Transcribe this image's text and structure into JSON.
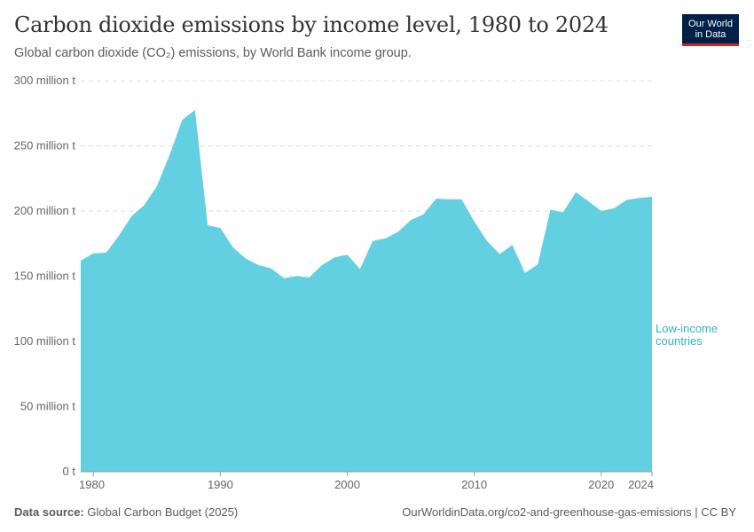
{
  "header": {
    "title": "Carbon dioxide emissions by income level, 1980 to 2024",
    "subtitle": "Global carbon dioxide (CO₂) emissions, by World Bank income group."
  },
  "logo": {
    "line1": "Our World",
    "line2": "in Data"
  },
  "footer": {
    "source_label": "Data source:",
    "source_value": "Global Carbon Budget (2025)",
    "url": "OurWorldinData.org/co2-and-greenhouse-gas-emissions | CC BY"
  },
  "colors": {
    "area": "#62d0e0",
    "label": "#2fb4c6",
    "grid": "#dddddd"
  },
  "chart_data": {
    "type": "area",
    "title": "Carbon dioxide emissions by income level, 1980 to 2024",
    "xlabel": "",
    "ylabel": "",
    "xlim": [
      1979,
      2024
    ],
    "ylim": [
      0,
      300000000
    ],
    "y_ticks": [
      0,
      50000000,
      100000000,
      150000000,
      200000000,
      250000000,
      300000000
    ],
    "y_tick_labels": [
      "0 t",
      "50 million t",
      "100 million t",
      "150 million t",
      "200 million t",
      "250 million t",
      "300 million t"
    ],
    "x_ticks": [
      1980,
      1990,
      2000,
      2010,
      2020,
      2024
    ],
    "x_tick_labels": [
      "1980",
      "1990",
      "2000",
      "2010",
      "2020",
      "2024"
    ],
    "grid": true,
    "series": [
      {
        "name": "Low-income countries",
        "label_lines": [
          "Low-income",
          "countries"
        ],
        "x": [
          1979,
          1980,
          1981,
          1982,
          1983,
          1984,
          1985,
          1986,
          1987,
          1988,
          1989,
          1990,
          1991,
          1992,
          1993,
          1994,
          1995,
          1996,
          1997,
          1998,
          1999,
          2000,
          2001,
          2002,
          2003,
          2004,
          2005,
          2006,
          2007,
          2008,
          2009,
          2010,
          2011,
          2012,
          2013,
          2014,
          2015,
          2016,
          2017,
          2018,
          2019,
          2020,
          2021,
          2022,
          2023,
          2024
        ],
        "values": [
          162000000,
          167500000,
          168000000,
          181000000,
          196000000,
          204500000,
          219000000,
          243000000,
          270000000,
          277500000,
          189000000,
          187000000,
          172000000,
          163500000,
          158500000,
          156000000,
          148500000,
          150000000,
          149000000,
          158500000,
          164500000,
          166500000,
          155500000,
          177000000,
          179000000,
          184000000,
          193000000,
          197500000,
          209500000,
          209000000,
          209000000,
          192000000,
          177000000,
          167000000,
          174000000,
          152500000,
          159000000,
          201000000,
          199000000,
          214500000,
          207500000,
          200000000,
          202000000,
          208500000,
          210000000,
          211000000
        ]
      }
    ]
  }
}
